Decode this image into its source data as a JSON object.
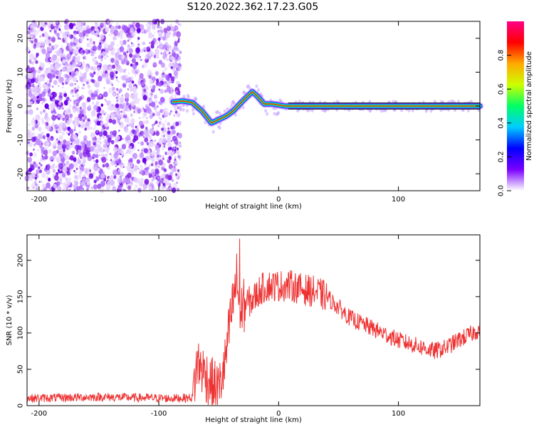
{
  "title": "S120.2022.362.17.23.G05",
  "colors": {
    "snr_line": "#ee3333",
    "frame": "#000000"
  },
  "spectrogram": {
    "type": "heatmap",
    "xlabel": "Height of straight line (km)",
    "ylabel": "Frequency (Hz)",
    "xlim": [
      -210,
      168
    ],
    "ylim": [
      -25,
      25
    ],
    "xticks": [
      -200,
      -100,
      0,
      100
    ],
    "xtick_labels": [
      "-200",
      "-100",
      "0",
      "100"
    ],
    "yticks": [
      -20,
      -10,
      0,
      10,
      20
    ],
    "ytick_labels": [
      "-20",
      "-10",
      "0",
      "10",
      "20"
    ],
    "grid": false,
    "colorbar": {
      "label": "Normalized spectral amplitude",
      "range": [
        0,
        1
      ],
      "ticks": [
        0,
        0.2,
        0.4,
        0.6,
        0.8
      ],
      "tick_labels": [
        "0.0",
        "0.2",
        "0.4",
        "0.6",
        "0.8"
      ],
      "colormap": [
        "#ffffff",
        "#7a00ff",
        "#0000ff",
        "#00ccff",
        "#00ff66",
        "#ccff00",
        "#ffaa00",
        "#ff0000",
        "#ff0088"
      ]
    },
    "ridge": {
      "x": [
        -88,
        -80,
        -72,
        -64,
        -56,
        -50,
        -44,
        -38,
        -30,
        -22,
        -18,
        -12,
        -5,
        5,
        20,
        60,
        100,
        168
      ],
      "y": [
        1.2,
        1.5,
        1.0,
        -1.5,
        -5.0,
        -4.0,
        -3.0,
        -1.5,
        1.5,
        4.2,
        3.0,
        0.6,
        0.6,
        0.0,
        0.0,
        0.0,
        0.0,
        0.0
      ]
    }
  },
  "snr_chart": {
    "type": "line",
    "xlabel": "Height of straight line (km)",
    "ylabel": "SNR (10 * v/v)",
    "xlim": [
      -210,
      168
    ],
    "ylim": [
      0,
      235
    ],
    "xticks": [
      -200,
      -100,
      0,
      100
    ],
    "xtick_labels": [
      "-200",
      "-100",
      "0",
      "100"
    ],
    "yticks": [
      0,
      50,
      100,
      150,
      200
    ],
    "ytick_labels": [
      "0",
      "50",
      "100",
      "150",
      "200"
    ],
    "grid": false,
    "series": [
      {
        "x": [
          -210,
          -180,
          -150,
          -120,
          -90,
          -72,
          -68,
          -62,
          -56,
          -50,
          -45,
          -40,
          -35,
          -32,
          -28,
          -22,
          -15,
          -8,
          0,
          10,
          20,
          30,
          40,
          60,
          80,
          100,
          120,
          130,
          140,
          150,
          160,
          168
        ],
        "values": [
          10,
          11,
          12,
          11,
          10,
          11,
          60,
          45,
          30,
          22,
          55,
          120,
          175,
          130,
          140,
          145,
          160,
          165,
          165,
          165,
          160,
          157,
          150,
          120,
          105,
          90,
          80,
          75,
          80,
          90,
          98,
          105
        ]
      }
    ]
  }
}
